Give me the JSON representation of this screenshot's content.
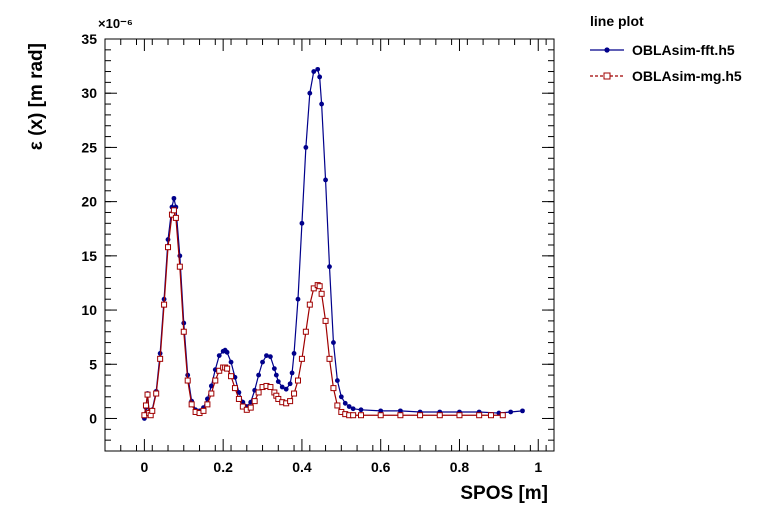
{
  "chart_data": {
    "type": "line",
    "title": "",
    "xlabel": "SPOS [m]",
    "ylabel": "ε (x)  [m rad]",
    "y_multiplier": "×10⁻⁶",
    "xlim": [
      -0.1,
      1.04
    ],
    "ylim": [
      -3,
      35
    ],
    "x_ticks": [
      "0",
      "0.2",
      "0.4",
      "0.6",
      "0.8",
      "1"
    ],
    "y_ticks": [
      "0",
      "5",
      "10",
      "15",
      "20",
      "25",
      "30",
      "35"
    ],
    "grid": false,
    "legend": {
      "title": "line plot",
      "position": "top-right outside"
    },
    "series": [
      {
        "name": "OBLAsim-fft.h5",
        "color": "#00008b",
        "marker": "filled-circle",
        "x": [
          0.0,
          0.004,
          0.008,
          0.012,
          0.016,
          0.02,
          0.03,
          0.04,
          0.05,
          0.06,
          0.07,
          0.075,
          0.08,
          0.09,
          0.1,
          0.11,
          0.12,
          0.13,
          0.14,
          0.15,
          0.16,
          0.17,
          0.18,
          0.19,
          0.2,
          0.205,
          0.21,
          0.22,
          0.23,
          0.24,
          0.25,
          0.26,
          0.27,
          0.28,
          0.29,
          0.3,
          0.31,
          0.32,
          0.33,
          0.335,
          0.34,
          0.35,
          0.36,
          0.37,
          0.375,
          0.38,
          0.39,
          0.4,
          0.41,
          0.42,
          0.43,
          0.44,
          0.445,
          0.45,
          0.46,
          0.47,
          0.48,
          0.49,
          0.5,
          0.51,
          0.52,
          0.53,
          0.55,
          0.6,
          0.65,
          0.7,
          0.75,
          0.8,
          0.85,
          0.9,
          0.93,
          0.96
        ],
        "y": [
          0.0,
          1.0,
          2.3,
          0.6,
          0.3,
          0.8,
          2.5,
          6.0,
          11.0,
          16.5,
          19.5,
          20.3,
          19.5,
          15.0,
          8.8,
          4.0,
          1.6,
          0.8,
          0.7,
          1.0,
          1.8,
          3.0,
          4.5,
          5.8,
          6.2,
          6.3,
          6.1,
          5.2,
          3.8,
          2.4,
          1.5,
          1.1,
          1.5,
          2.6,
          4.0,
          5.2,
          5.8,
          5.7,
          4.6,
          4.0,
          3.4,
          2.9,
          2.7,
          3.2,
          4.2,
          6.0,
          11.0,
          18.0,
          25.0,
          30.0,
          32.0,
          32.2,
          31.5,
          29.0,
          22.0,
          14.0,
          7.0,
          3.5,
          2.0,
          1.4,
          1.1,
          0.9,
          0.8,
          0.7,
          0.7,
          0.6,
          0.6,
          0.6,
          0.6,
          0.5,
          0.6,
          0.7
        ]
      },
      {
        "name": "OBLAsim-mg.h5",
        "color": "#a00000",
        "marker": "open-square",
        "x": [
          0.0,
          0.004,
          0.008,
          0.012,
          0.016,
          0.02,
          0.03,
          0.04,
          0.05,
          0.06,
          0.07,
          0.075,
          0.08,
          0.09,
          0.1,
          0.11,
          0.12,
          0.13,
          0.14,
          0.15,
          0.16,
          0.17,
          0.18,
          0.19,
          0.2,
          0.205,
          0.21,
          0.22,
          0.23,
          0.24,
          0.25,
          0.26,
          0.27,
          0.28,
          0.29,
          0.3,
          0.31,
          0.32,
          0.33,
          0.335,
          0.34,
          0.35,
          0.36,
          0.37,
          0.38,
          0.39,
          0.4,
          0.41,
          0.42,
          0.43,
          0.44,
          0.445,
          0.45,
          0.46,
          0.47,
          0.48,
          0.49,
          0.5,
          0.51,
          0.52,
          0.53,
          0.55,
          0.6,
          0.65,
          0.7,
          0.75,
          0.8,
          0.85,
          0.88,
          0.91
        ],
        "y": [
          0.3,
          1.2,
          2.2,
          0.5,
          0.3,
          0.7,
          2.3,
          5.5,
          10.5,
          15.8,
          18.8,
          19.2,
          18.5,
          14.0,
          8.0,
          3.5,
          1.3,
          0.6,
          0.5,
          0.7,
          1.3,
          2.3,
          3.5,
          4.4,
          4.7,
          4.7,
          4.6,
          3.9,
          2.8,
          1.8,
          1.1,
          0.8,
          1.0,
          1.6,
          2.4,
          2.9,
          3.0,
          2.9,
          2.4,
          2.1,
          1.8,
          1.5,
          1.4,
          1.6,
          2.3,
          3.5,
          5.5,
          8.0,
          10.5,
          12.0,
          12.3,
          12.2,
          11.5,
          9.0,
          5.5,
          2.8,
          1.2,
          0.6,
          0.4,
          0.3,
          0.3,
          0.3,
          0.3,
          0.3,
          0.3,
          0.3,
          0.3,
          0.3,
          0.3,
          0.3
        ]
      }
    ]
  }
}
